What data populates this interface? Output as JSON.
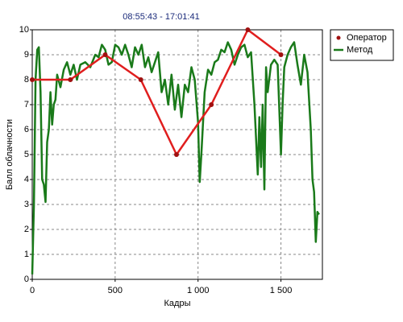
{
  "chart_data": {
    "type": "line",
    "title": "08:55:43  -  17:01:41",
    "xlabel": "Кадры",
    "ylabel": "Балл облачности",
    "xlim": [
      0,
      1750
    ],
    "ylim": [
      0,
      10
    ],
    "xticks": [
      0,
      500,
      {
        "value": 1000,
        "label": "1 000"
      },
      {
        "value": 1500,
        "label": "1 500"
      }
    ],
    "yticks": [
      0,
      1,
      2,
      3,
      4,
      5,
      6,
      7,
      8,
      9,
      10
    ],
    "grid": true,
    "legend": "right",
    "series": [
      {
        "name": "Оператор",
        "color": "#e01e1e",
        "markers": true,
        "x": [
          0,
          230,
          440,
          655,
          870,
          1080,
          1300,
          1500
        ],
        "values": [
          8,
          8,
          9,
          8,
          5,
          7,
          10,
          9
        ]
      },
      {
        "name": "Метод",
        "color": "#1a7a1a",
        "markers": false,
        "x": [
          0,
          10,
          20,
          30,
          40,
          50,
          60,
          70,
          80,
          90,
          100,
          110,
          120,
          130,
          140,
          150,
          170,
          190,
          210,
          230,
          250,
          270,
          290,
          320,
          350,
          380,
          400,
          420,
          440,
          460,
          480,
          500,
          520,
          540,
          560,
          580,
          600,
          620,
          640,
          660,
          680,
          700,
          720,
          740,
          760,
          780,
          800,
          820,
          840,
          860,
          880,
          900,
          920,
          940,
          960,
          980,
          1000,
          1010,
          1020,
          1040,
          1060,
          1080,
          1100,
          1120,
          1140,
          1160,
          1180,
          1200,
          1220,
          1240,
          1260,
          1280,
          1300,
          1320,
          1340,
          1360,
          1370,
          1380,
          1390,
          1400,
          1410,
          1420,
          1440,
          1460,
          1480,
          1500,
          1510,
          1520,
          1540,
          1560,
          1580,
          1600,
          1620,
          1640,
          1660,
          1680,
          1690,
          1700,
          1710,
          1720,
          1730
        ],
        "values": [
          0.2,
          3,
          8,
          9.2,
          9.3,
          7.5,
          4,
          3.8,
          3.1,
          5.5,
          6,
          7.5,
          6.2,
          7,
          7.2,
          8.2,
          7.7,
          8.4,
          8.7,
          8.2,
          8.6,
          8,
          8.6,
          8.7,
          8.5,
          9,
          8.9,
          9.4,
          9.2,
          8.6,
          8.7,
          9.4,
          9.3,
          9,
          9.4,
          9,
          8.5,
          9.3,
          9,
          9.4,
          8.5,
          8.9,
          8.3,
          8.7,
          9.1,
          7.5,
          8,
          7,
          8.2,
          6.8,
          7.8,
          6.5,
          7.8,
          7.5,
          8.5,
          8,
          6.3,
          3.9,
          5,
          7.5,
          8.4,
          8.2,
          8.7,
          8.8,
          9.2,
          9.1,
          9.5,
          9.2,
          8.6,
          9,
          9.3,
          9.4,
          8.9,
          9.1,
          7,
          4.2,
          6.5,
          4.5,
          7,
          3.6,
          8.5,
          7.5,
          8.6,
          8.8,
          8.6,
          5,
          7,
          8.5,
          9,
          9.3,
          9.5,
          8.6,
          7.8,
          9,
          8.3,
          6,
          4,
          3.5,
          1.5,
          2.7,
          2.6
        ]
      }
    ]
  }
}
